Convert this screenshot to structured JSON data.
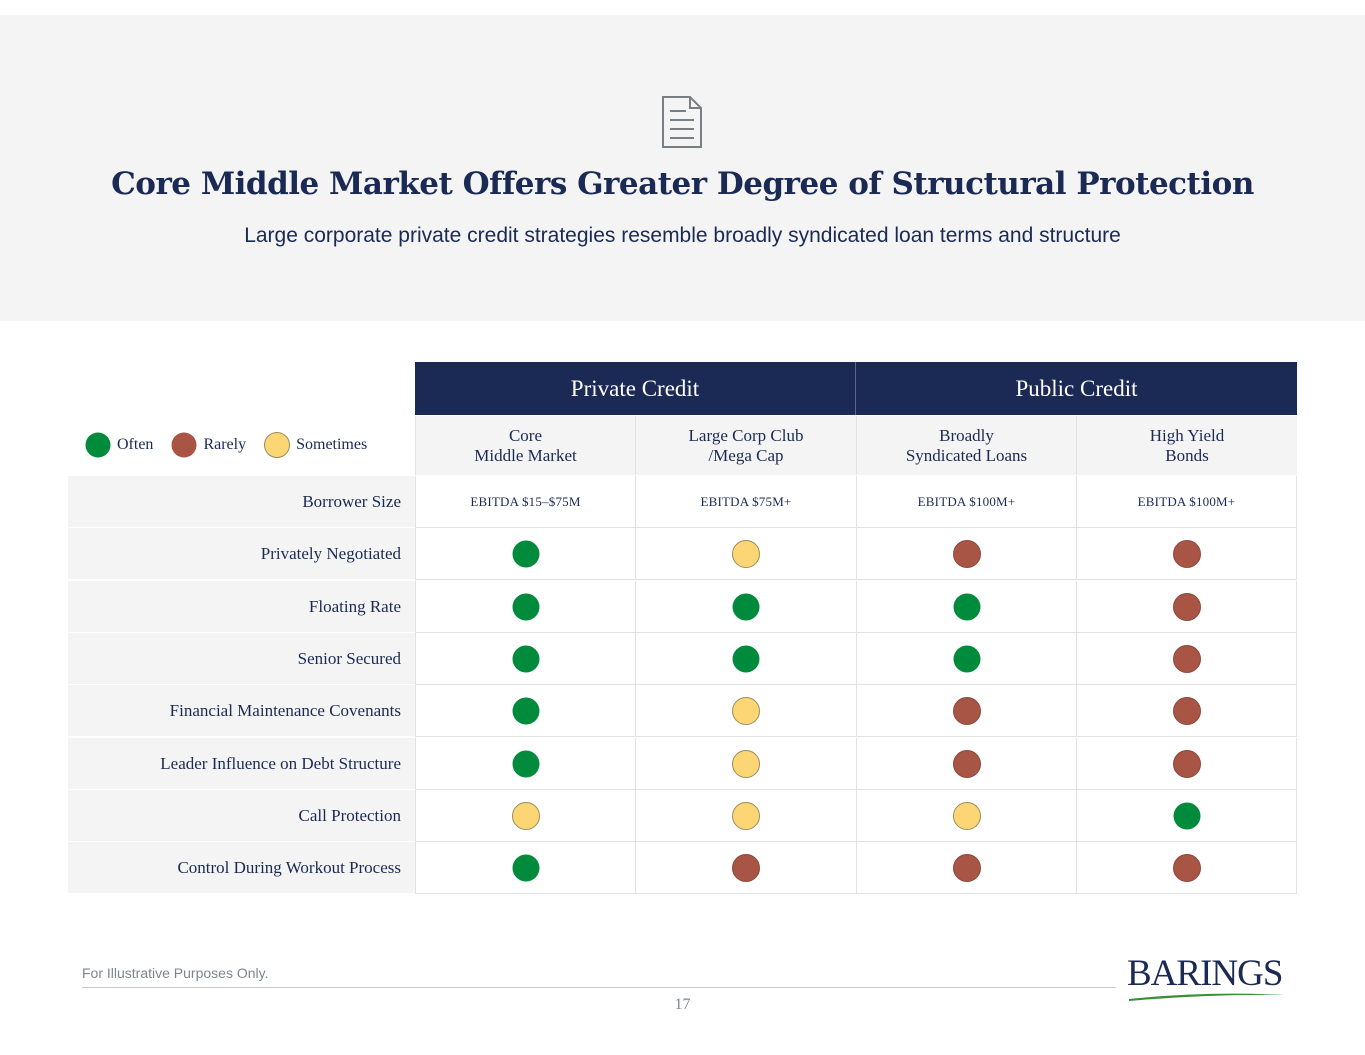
{
  "header": {
    "icon": "document-icon",
    "title": "Core Middle Market Offers Greater Degree of Structural Protection",
    "subtitle": "Large corporate private credit strategies resemble broadly syndicated loan terms and structure"
  },
  "colors": {
    "often": "#008a3c",
    "rarely": "#a85545",
    "sometimes": "#fcd674",
    "navy": "#1b2a55"
  },
  "legend": [
    {
      "key": "often",
      "label": "Often"
    },
    {
      "key": "rarely",
      "label": "Rarely"
    },
    {
      "key": "sometimes",
      "label": "Sometimes"
    }
  ],
  "table": {
    "groups": [
      "Private Credit",
      "Public Credit"
    ],
    "columns": [
      "Core\nMiddle Market",
      "Large Corp Club\n/Mega Cap",
      "Broadly\nSyndicated Loans",
      "High Yield\nBonds"
    ],
    "size_row": {
      "label": "Borrower Size",
      "values": [
        "EBITDA $15–$75M",
        "EBITDA $75M+",
        "EBITDA $100M+",
        "EBITDA $100M+"
      ]
    },
    "rows": [
      {
        "label": "Privately Negotiated",
        "values": [
          "often",
          "sometimes",
          "rarely",
          "rarely"
        ]
      },
      {
        "label": "Floating Rate",
        "values": [
          "often",
          "often",
          "often",
          "rarely"
        ]
      },
      {
        "label": "Senior Secured",
        "values": [
          "often",
          "often",
          "often",
          "rarely"
        ]
      },
      {
        "label": "Financial Maintenance Covenants",
        "values": [
          "often",
          "sometimes",
          "rarely",
          "rarely"
        ]
      },
      {
        "label": "Leader Influence on Debt Structure",
        "values": [
          "often",
          "sometimes",
          "rarely",
          "rarely"
        ]
      },
      {
        "label": "Call Protection",
        "values": [
          "sometimes",
          "sometimes",
          "sometimes",
          "often"
        ]
      },
      {
        "label": "Control During Workout Process",
        "values": [
          "often",
          "rarely",
          "rarely",
          "rarely"
        ]
      }
    ]
  },
  "footer": {
    "note": "For Illustrative Purposes Only.",
    "page_number": "17",
    "logo_text": "BARINGS"
  }
}
